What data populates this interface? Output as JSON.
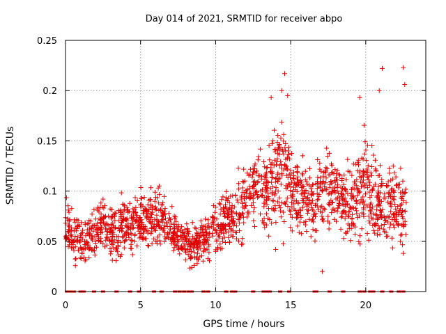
{
  "chart_data": {
    "type": "scatter",
    "title": "Day 014 of 2021, SRMTID for receiver abpo",
    "xlabel": "GPS time / hours",
    "ylabel": "SRMTID / TECUs",
    "xlim": [
      0,
      24
    ],
    "ylim": [
      0,
      0.25
    ],
    "x_ticks": [
      0,
      5,
      10,
      15,
      20
    ],
    "x_tick_labels": [
      "0",
      "5",
      "10",
      "15",
      "20"
    ],
    "y_ticks": [
      0,
      0.05,
      0.1,
      0.15,
      0.2,
      0.25
    ],
    "y_tick_labels": [
      "0",
      "0.05",
      "0.1",
      "0.15",
      "0.2",
      "0.25"
    ],
    "grid": true,
    "marker": "+",
    "color": "#e00000",
    "series": [
      {
        "name": "SRMTID",
        "envelope_hours": [
          0.0,
          0.5,
          1.0,
          1.5,
          2.0,
          2.5,
          3.0,
          3.5,
          4.0,
          4.5,
          5.0,
          5.5,
          6.0,
          6.5,
          7.0,
          7.5,
          8.0,
          8.5,
          9.0,
          9.5,
          10.0,
          10.5,
          11.0,
          11.5,
          12.0,
          12.5,
          13.0,
          13.5,
          14.0,
          14.5,
          15.0,
          15.5,
          16.0,
          16.5,
          17.0,
          17.5,
          18.0,
          18.5,
          19.0,
          19.5,
          20.0,
          20.5,
          21.0,
          21.5,
          22.0,
          22.5
        ],
        "envelope_median": [
          0.065,
          0.055,
          0.048,
          0.05,
          0.058,
          0.07,
          0.062,
          0.06,
          0.07,
          0.065,
          0.072,
          0.075,
          0.08,
          0.07,
          0.062,
          0.055,
          0.05,
          0.045,
          0.05,
          0.055,
          0.062,
          0.07,
          0.075,
          0.085,
          0.09,
          0.1,
          0.105,
          0.1,
          0.115,
          0.12,
          0.105,
          0.095,
          0.09,
          0.085,
          0.1,
          0.105,
          0.095,
          0.09,
          0.085,
          0.1,
          0.11,
          0.095,
          0.09,
          0.085,
          0.085,
          0.085
        ],
        "envelope_spread": [
          0.022,
          0.018,
          0.016,
          0.018,
          0.02,
          0.02,
          0.02,
          0.022,
          0.022,
          0.022,
          0.022,
          0.022,
          0.025,
          0.022,
          0.018,
          0.016,
          0.016,
          0.016,
          0.016,
          0.018,
          0.02,
          0.022,
          0.025,
          0.028,
          0.03,
          0.03,
          0.032,
          0.035,
          0.04,
          0.045,
          0.035,
          0.03,
          0.028,
          0.028,
          0.03,
          0.03,
          0.028,
          0.026,
          0.03,
          0.035,
          0.038,
          0.035,
          0.03,
          0.03,
          0.03,
          0.035
        ],
        "points_per_hour": 80,
        "coverage_end_hours": 22.7,
        "outliers": [
          {
            "x": 14.6,
            "y": 0.217
          },
          {
            "x": 14.4,
            "y": 0.2
          },
          {
            "x": 14.8,
            "y": 0.195
          },
          {
            "x": 21.1,
            "y": 0.222
          },
          {
            "x": 22.5,
            "y": 0.223
          },
          {
            "x": 22.6,
            "y": 0.206
          },
          {
            "x": 20.9,
            "y": 0.2
          },
          {
            "x": 19.6,
            "y": 0.193
          },
          {
            "x": 13.7,
            "y": 0.193
          },
          {
            "x": 17.1,
            "y": 0.02
          },
          {
            "x": 22.5,
            "y": 0.038
          },
          {
            "x": 14.0,
            "y": 0.042
          }
        ],
        "zero_value_hours": [
          0.1,
          0.35,
          0.55,
          1.0,
          1.2,
          1.9,
          2.5,
          3.4,
          4.3,
          4.9,
          5.9,
          6.4,
          7.3,
          7.6,
          7.9,
          8.2,
          8.4,
          9.2,
          9.5,
          10.7,
          11.1,
          11.3,
          12.5,
          13.2,
          13.4,
          13.6,
          14.3,
          14.9,
          16.6,
          16.7,
          17.6,
          18.5,
          19.6,
          19.9,
          20.3,
          20.5,
          21.1,
          21.7,
          22.2,
          22.5
        ]
      }
    ]
  }
}
